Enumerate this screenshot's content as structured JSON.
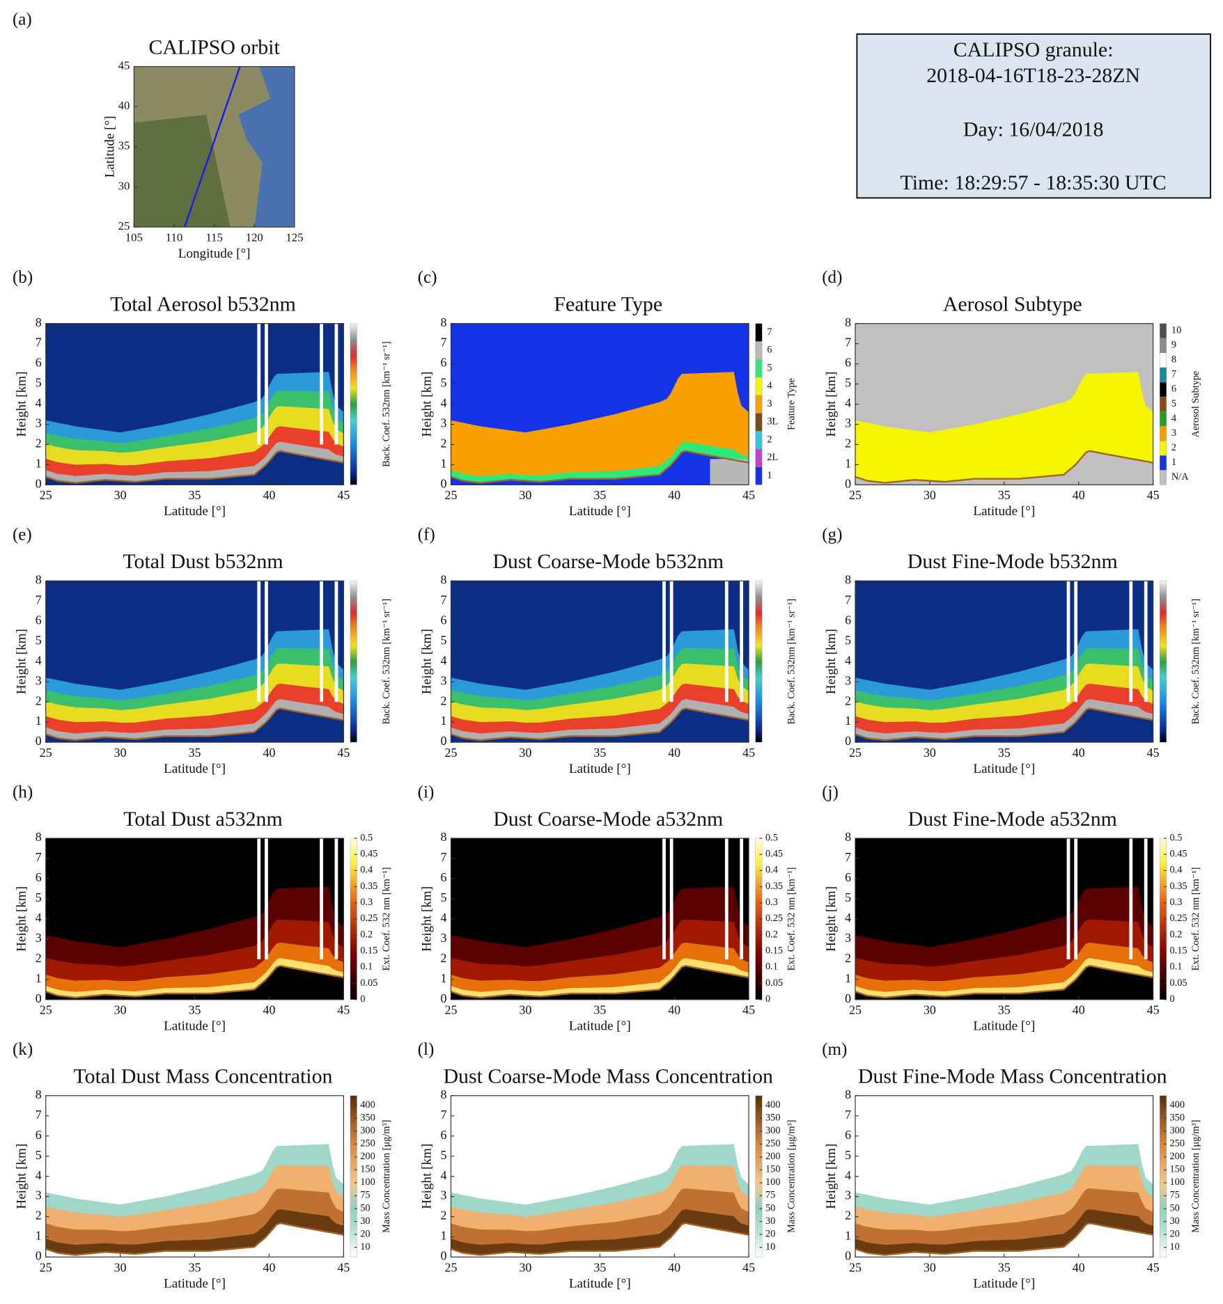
{
  "info_box": {
    "lines": [
      "CALIPSO granule:",
      "2018-04-16T18-23-28ZN",
      "Day: 16/04/2018",
      "Time: 18:29:57 - 18:35:30 UTC"
    ]
  },
  "chart_data": [
    {
      "type": "map",
      "panel": "(a)",
      "title": "CALIPSO orbit",
      "xlabel": "Longitude [°]",
      "ylabel": "Latitude [°]",
      "xlim": [
        105,
        125
      ],
      "xticks": [
        105,
        110,
        115,
        120,
        125
      ],
      "ylim": [
        25,
        45
      ],
      "yticks": [
        25,
        30,
        35,
        40,
        45
      ],
      "series": [
        {
          "color": "#1a1aee",
          "x": [
            111.3,
            118.2
          ],
          "values": [
            25,
            45
          ]
        }
      ]
    },
    {
      "type": "curtain",
      "panel": "(b)",
      "title": "Total Aerosol b532nm",
      "xlabel": "Latitude [°]",
      "ylabel": "Height [km]",
      "xlim": [
        25,
        45
      ],
      "xticks": [
        25,
        30,
        35,
        40,
        45
      ],
      "ylim": [
        0,
        8
      ],
      "yticks": [
        0,
        1,
        2,
        3,
        4,
        5,
        6,
        7,
        8
      ],
      "colorbar": {
        "colormap": "jet",
        "label": "Back. Coef. 532nm [km⁻¹ sr⁻¹]"
      }
    },
    {
      "type": "curtain",
      "panel": "(c)",
      "title": "Feature Type",
      "xlabel": "Latitude [°]",
      "ylabel": "Height [km]",
      "xlim": [
        25,
        45
      ],
      "xticks": [
        25,
        30,
        35,
        40,
        45
      ],
      "ylim": [
        0,
        8
      ],
      "yticks": [
        0,
        1,
        2,
        3,
        4,
        5,
        6,
        7,
        8
      ],
      "colorbar": {
        "colormap": "feature",
        "label": "Feature Type",
        "categories": [
          "1",
          "2L",
          "2",
          "3L",
          "3",
          "4",
          "5",
          "6",
          "7"
        ],
        "colors": [
          "#1432e6",
          "#c040d0",
          "#30c8e0",
          "#7a4a1a",
          "#f7a000",
          "#f5f500",
          "#2ee87a",
          "#b8b8b8",
          "#000000"
        ]
      }
    },
    {
      "type": "curtain",
      "panel": "(d)",
      "title": "Aerosol Subtype",
      "xlabel": "Latitude [°]",
      "ylabel": "Height [km]",
      "xlim": [
        25,
        45
      ],
      "xticks": [
        25,
        30,
        35,
        40,
        45
      ],
      "ylim": [
        0,
        8
      ],
      "yticks": [
        0,
        1,
        2,
        3,
        4,
        5,
        6,
        7,
        8
      ],
      "colorbar": {
        "colormap": "subtype",
        "label": "Aerosol Subtype",
        "categories": [
          "N/A",
          "1",
          "2",
          "3",
          "4",
          "5",
          "6",
          "7",
          "8",
          "9",
          "10"
        ],
        "colors": [
          "#c0c0c0",
          "#1432e6",
          "#f5f500",
          "#f7a000",
          "#22a022",
          "#8a4a10",
          "#000000",
          "#1a8aa0",
          "#ffffff",
          "#8a8a8a",
          "#505050"
        ]
      }
    },
    {
      "type": "curtain",
      "panel": "(e)",
      "title": "Total Dust b532nm",
      "xlabel": "Latitude [°]",
      "ylabel": "Height [km]",
      "xlim": [
        25,
        45
      ],
      "xticks": [
        25,
        30,
        35,
        40,
        45
      ],
      "ylim": [
        0,
        8
      ],
      "yticks": [
        0,
        1,
        2,
        3,
        4,
        5,
        6,
        7,
        8
      ],
      "colorbar": {
        "colormap": "jet",
        "label": "Back. Coef. 532nm [km⁻¹ sr⁻¹]"
      }
    },
    {
      "type": "curtain",
      "panel": "(f)",
      "title": "Dust Coarse-Mode b532nm",
      "xlabel": "Latitude [°]",
      "ylabel": "Height [km]",
      "xlim": [
        25,
        45
      ],
      "xticks": [
        25,
        30,
        35,
        40,
        45
      ],
      "ylim": [
        0,
        8
      ],
      "yticks": [
        0,
        1,
        2,
        3,
        4,
        5,
        6,
        7,
        8
      ],
      "colorbar": {
        "colormap": "jet",
        "label": "Back. Coef. 532nm [km⁻¹ sr⁻¹]"
      }
    },
    {
      "type": "curtain",
      "panel": "(g)",
      "title": "Dust Fine-Mode b532nm",
      "xlabel": "Latitude [°]",
      "ylabel": "Height [km]",
      "xlim": [
        25,
        45
      ],
      "xticks": [
        25,
        30,
        35,
        40,
        45
      ],
      "ylim": [
        0,
        8
      ],
      "yticks": [
        0,
        1,
        2,
        3,
        4,
        5,
        6,
        7,
        8
      ],
      "colorbar": {
        "colormap": "jet",
        "label": "Back. Coef. 532nm [km⁻¹ sr⁻¹]"
      }
    },
    {
      "type": "curtain",
      "panel": "(h)",
      "title": "Total Dust a532nm",
      "xlabel": "Latitude [°]",
      "ylabel": "Height [km]",
      "xlim": [
        25,
        45
      ],
      "xticks": [
        25,
        30,
        35,
        40,
        45
      ],
      "ylim": [
        0,
        8
      ],
      "yticks": [
        0,
        1,
        2,
        3,
        4,
        5,
        6,
        7,
        8
      ],
      "colorbar": {
        "colormap": "hot",
        "label": "Ext. Coef. 532 nm [km⁻¹]",
        "clim": [
          0,
          0.5
        ],
        "ticks": [
          0,
          0.05,
          0.1,
          0.15,
          0.2,
          0.25,
          0.3,
          0.35,
          0.4,
          0.45,
          0.5
        ]
      }
    },
    {
      "type": "curtain",
      "panel": "(i)",
      "title": "Dust Coarse-Mode a532nm",
      "xlabel": "Latitude [°]",
      "ylabel": "Height [km]",
      "xlim": [
        25,
        45
      ],
      "xticks": [
        25,
        30,
        35,
        40,
        45
      ],
      "ylim": [
        0,
        8
      ],
      "yticks": [
        0,
        1,
        2,
        3,
        4,
        5,
        6,
        7,
        8
      ],
      "colorbar": {
        "colormap": "hot",
        "label": "Ext. Coef. 532 nm [km⁻¹]",
        "clim": [
          0,
          0.5
        ],
        "ticks": [
          0,
          0.05,
          0.1,
          0.15,
          0.2,
          0.25,
          0.3,
          0.35,
          0.4,
          0.45,
          0.5
        ]
      }
    },
    {
      "type": "curtain",
      "panel": "(j)",
      "title": "Dust Fine-Mode a532nm",
      "xlabel": "Latitude [°]",
      "ylabel": "Height [km]",
      "xlim": [
        25,
        45
      ],
      "xticks": [
        25,
        30,
        35,
        40,
        45
      ],
      "ylim": [
        0,
        8
      ],
      "yticks": [
        0,
        1,
        2,
        3,
        4,
        5,
        6,
        7,
        8
      ],
      "colorbar": {
        "colormap": "hot",
        "label": "Ext. Coef. 532 nm [km⁻¹]",
        "clim": [
          0,
          0.5
        ],
        "ticks": [
          0,
          0.05,
          0.1,
          0.15,
          0.2,
          0.25,
          0.3,
          0.35,
          0.4,
          0.45,
          0.5
        ]
      }
    },
    {
      "type": "curtain",
      "panel": "(k)",
      "title": "Total Dust Mass Concentration",
      "xlabel": "Latitude [°]",
      "ylabel": "Height [km]",
      "xlim": [
        25,
        45
      ],
      "xticks": [
        25,
        30,
        35,
        40,
        45
      ],
      "ylim": [
        0,
        8
      ],
      "yticks": [
        0,
        1,
        2,
        3,
        4,
        5,
        6,
        7,
        8
      ],
      "colorbar": {
        "colormap": "copper",
        "label": "Mass Concentration [μg/m³]",
        "ticks": [
          10,
          20,
          30,
          50,
          75,
          100,
          150,
          200,
          250,
          300,
          350,
          400
        ]
      }
    },
    {
      "type": "curtain",
      "panel": "(l)",
      "title": "Dust Coarse-Mode Mass Concentration",
      "xlabel": "Latitude [°]",
      "ylabel": "Height [km]",
      "xlim": [
        25,
        45
      ],
      "xticks": [
        25,
        30,
        35,
        40,
        45
      ],
      "ylim": [
        0,
        8
      ],
      "yticks": [
        0,
        1,
        2,
        3,
        4,
        5,
        6,
        7,
        8
      ],
      "colorbar": {
        "colormap": "copper",
        "label": "Mass Concentration [μg/m³]",
        "ticks": [
          10,
          20,
          30,
          50,
          75,
          100,
          150,
          200,
          250,
          300,
          350,
          400
        ]
      }
    },
    {
      "type": "curtain",
      "panel": "(m)",
      "title": "Dust Fine-Mode Mass Concentration",
      "xlabel": "Latitude [°]",
      "ylabel": "Height [km]",
      "xlim": [
        25,
        45
      ],
      "xticks": [
        25,
        30,
        35,
        40,
        45
      ],
      "ylim": [
        0,
        8
      ],
      "yticks": [
        0,
        1,
        2,
        3,
        4,
        5,
        6,
        7,
        8
      ],
      "colorbar": {
        "colormap": "copper",
        "label": "Mass Concentration [μg/m³]",
        "ticks": [
          10,
          20,
          30,
          50,
          75,
          100,
          150,
          200,
          250,
          300,
          350,
          400
        ]
      }
    }
  ]
}
